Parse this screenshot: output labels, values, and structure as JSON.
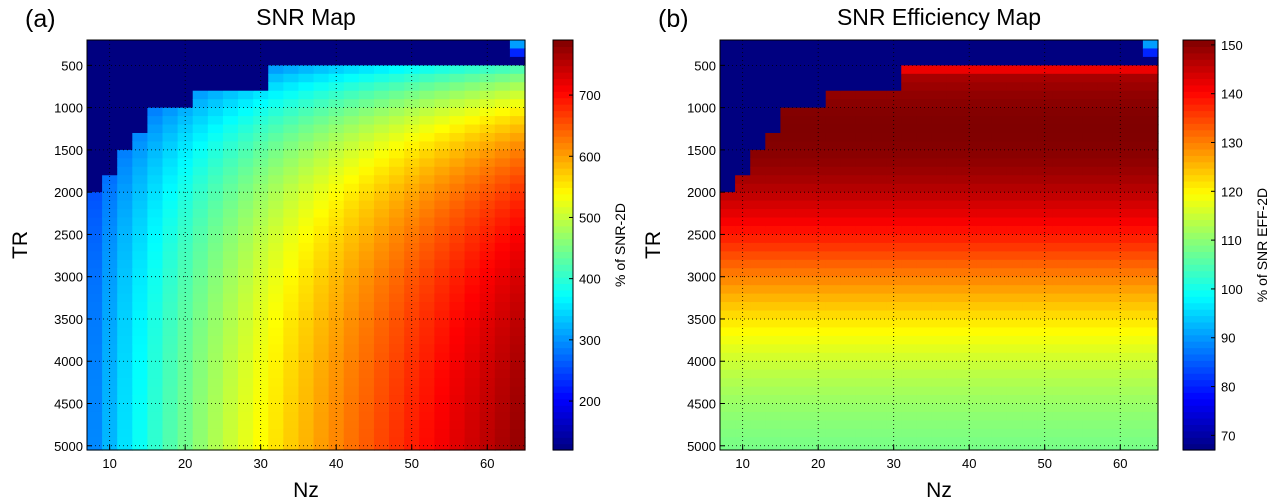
{
  "chart_data": [
    {
      "type": "heatmap",
      "panel_label": "(a)",
      "title": "SNR Map",
      "xlabel": "Nz",
      "ylabel": "TR",
      "colorbar_label": "% of SNR-2D",
      "x_range": [
        7,
        65
      ],
      "y_range": [
        200,
        5050
      ],
      "x_ticks": [
        10,
        20,
        30,
        40,
        50,
        60
      ],
      "y_ticks": [
        500,
        1000,
        1500,
        2000,
        2500,
        3000,
        3500,
        4000,
        4500,
        5000
      ],
      "x_tick_labels": [
        "10",
        "20",
        "30",
        "40",
        "50",
        "60"
      ],
      "y_tick_labels": [
        "500",
        "1000",
        "1500",
        "2000",
        "2500",
        "3000",
        "3500",
        "4000",
        "4500",
        "5000"
      ],
      "color_range": [
        120,
        790
      ],
      "colorbar_ticks": [
        200,
        300,
        400,
        500,
        600,
        700
      ],
      "colorbar_tick_labels": [
        "200",
        "300",
        "400",
        "500",
        "600",
        "700"
      ],
      "colormap": "jet",
      "grid": true,
      "model": "snr"
    },
    {
      "type": "heatmap",
      "panel_label": "(b)",
      "title": "SNR Efficiency Map",
      "xlabel": "Nz",
      "ylabel": "TR",
      "colorbar_label": "% of SNR EFF-2D",
      "x_range": [
        7,
        65
      ],
      "y_range": [
        200,
        5050
      ],
      "x_ticks": [
        10,
        20,
        30,
        40,
        50,
        60
      ],
      "y_ticks": [
        500,
        1000,
        1500,
        2000,
        2500,
        3000,
        3500,
        4000,
        4500,
        5000
      ],
      "x_tick_labels": [
        "10",
        "20",
        "30",
        "40",
        "50",
        "60"
      ],
      "y_tick_labels": [
        "500",
        "1000",
        "1500",
        "2000",
        "2500",
        "3000",
        "3500",
        "4000",
        "4500",
        "5000"
      ],
      "color_range": [
        67,
        151
      ],
      "colorbar_ticks": [
        70,
        80,
        90,
        100,
        110,
        120,
        130,
        140,
        150
      ],
      "colorbar_tick_labels": [
        "70",
        "80",
        "90",
        "100",
        "110",
        "120",
        "130",
        "140",
        "150"
      ],
      "colormap": "jet",
      "grid": true,
      "model": "efficiency"
    }
  ]
}
